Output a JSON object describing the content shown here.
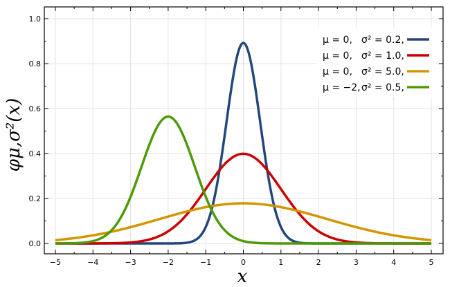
{
  "chart_data": {
    "type": "line",
    "xlabel": "x",
    "ylabel": "φμ,σ²(x)",
    "xlim": [
      -5,
      5
    ],
    "ylim": [
      0,
      1.0
    ],
    "grid": true,
    "legend_position": "top-right",
    "x_ticks": [
      "−5",
      "−4",
      "−3",
      "−2",
      "−1",
      "0",
      "1",
      "2",
      "3",
      "4",
      "5"
    ],
    "y_ticks": [
      "0.0",
      "0.2",
      "0.4",
      "0.6",
      "0.8",
      "1.0"
    ],
    "y_tick_values": [
      0,
      0.2,
      0.4,
      0.6,
      0.8,
      1.0
    ],
    "x_tick_values": [
      -5,
      -4,
      -3,
      -2,
      -1,
      0,
      1,
      2,
      3,
      4,
      5
    ],
    "series": [
      {
        "mu_label": "μ = 0,",
        "sigma_label": "σ² = 0.2,",
        "mu": 0,
        "variance": 0.2,
        "color": "#24467d"
      },
      {
        "mu_label": "μ = 0,",
        "sigma_label": "σ² = 1.0,",
        "mu": 0,
        "variance": 1.0,
        "color": "#cc0000"
      },
      {
        "mu_label": "μ = 0,",
        "sigma_label": "σ² = 5.0,",
        "mu": 0,
        "variance": 5.0,
        "color": "#d49500"
      },
      {
        "mu_label": "μ = −2,",
        "sigma_label": "σ² = 0.5,",
        "mu": -2,
        "variance": 0.5,
        "color": "#4e9a06"
      }
    ]
  }
}
